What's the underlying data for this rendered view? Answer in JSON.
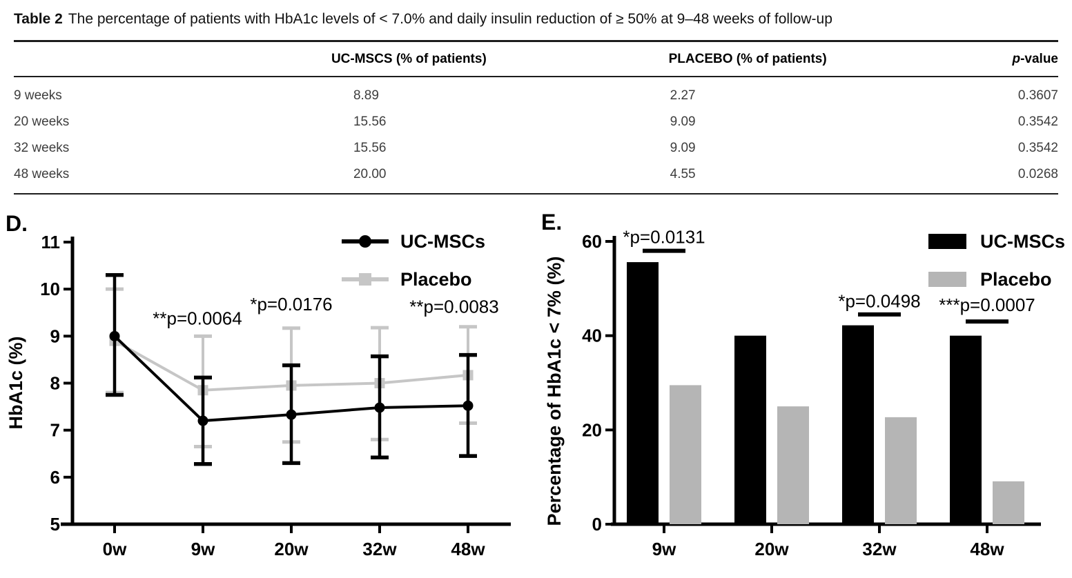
{
  "table": {
    "title_bold": "Table 2",
    "title_rest": "The percentage of patients with HbA1c levels of < 7.0% and daily insulin reduction of ≥ 50% at 9–48 weeks of follow-up",
    "header": {
      "col1": "",
      "col2": "UC-MSCS (% of patients)",
      "col3": "PLACEBO (% of patients)",
      "p_italic": "p",
      "p_rest": "-value"
    },
    "rows": [
      {
        "label": "9 weeks",
        "ucmscs": "8.89",
        "placebo": "2.27",
        "p": "0.3607"
      },
      {
        "label": "20 weeks",
        "ucmscs": "15.56",
        "placebo": "9.09",
        "p": "0.3542"
      },
      {
        "label": "32 weeks",
        "ucmscs": "15.56",
        "placebo": "9.09",
        "p": "0.3542"
      },
      {
        "label": "48 weeks",
        "ucmscs": "20.00",
        "placebo": "4.55",
        "p": "0.0268"
      }
    ]
  },
  "chart_data": [
    {
      "id": "D",
      "type": "line",
      "panel_label": "D.",
      "ylabel": "HbA1c (%)",
      "ylim": [
        5,
        11
      ],
      "yticks": [
        5,
        6,
        7,
        8,
        9,
        10,
        11
      ],
      "categories": [
        "0w",
        "9w",
        "20w",
        "32w",
        "48w"
      ],
      "grid": false,
      "legend_position": "top-right",
      "series": [
        {
          "name": "Placebo",
          "color": "#c6c6c6",
          "marker": "square",
          "values": [
            8.9,
            7.85,
            7.95,
            8.0,
            8.17
          ],
          "err_low": [
            7.8,
            6.65,
            6.75,
            6.8,
            7.15
          ],
          "err_high": [
            10.0,
            9.0,
            9.17,
            9.18,
            9.2
          ]
        },
        {
          "name": "UC-MSCs",
          "color": "#000000",
          "marker": "circle",
          "values": [
            9.0,
            7.2,
            7.33,
            7.48,
            7.52
          ],
          "err_low": [
            7.75,
            6.28,
            6.3,
            6.42,
            6.45
          ],
          "err_high": [
            10.3,
            8.12,
            8.38,
            8.57,
            8.6
          ]
        }
      ],
      "legend_order": [
        "UC-MSCs",
        "Placebo"
      ],
      "annotations": [
        {
          "text": "**p=0.0064",
          "x_index": 1,
          "y": 9.25
        },
        {
          "text": "*p=0.0176",
          "x_index": 2,
          "y": 9.55
        },
        {
          "text": "**p=0.0083",
          "x_index": 4,
          "y": 9.5
        }
      ]
    },
    {
      "id": "E",
      "type": "bar",
      "panel_label": "E.",
      "ylabel": "Percentage of HbA1c < 7% (%)",
      "ylim": [
        0,
        60
      ],
      "yticks": [
        0,
        20,
        40,
        60
      ],
      "categories": [
        "9w",
        "20w",
        "32w",
        "48w"
      ],
      "grid": false,
      "legend_position": "top-right",
      "series": [
        {
          "name": "UC-MSCs",
          "color": "#000000",
          "values": [
            55.6,
            40.0,
            42.2,
            40.0
          ]
        },
        {
          "name": "Placebo",
          "color": "#b5b5b5",
          "values": [
            29.5,
            25.0,
            22.7,
            9.1
          ]
        }
      ],
      "annotations": [
        {
          "text": "*p=0.0131",
          "x_index": 0,
          "y": 59.6,
          "line_y": 58.0,
          "sig_line": true
        },
        {
          "text": "*p=0.0498",
          "x_index": 2,
          "y": 46.0,
          "line_y": 44.5,
          "sig_line": true
        },
        {
          "text": "***p=0.0007",
          "x_index": 3,
          "y": 45.2,
          "line_y": 43.0,
          "sig_line": true
        }
      ]
    }
  ]
}
